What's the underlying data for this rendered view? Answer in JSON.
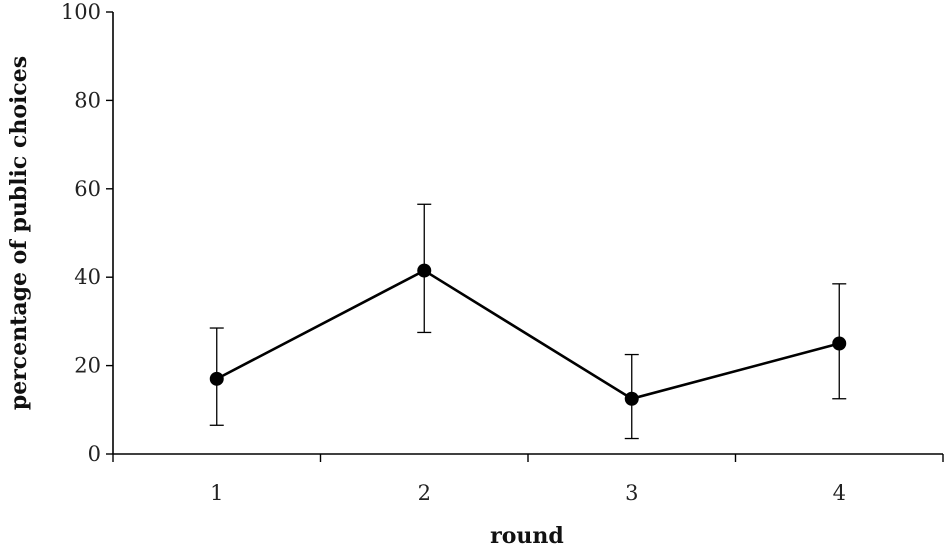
{
  "chart_data": {
    "type": "line",
    "title": "",
    "xlabel": "round",
    "ylabel": "percentage of public choices",
    "categories": [
      "1",
      "2",
      "3",
      "4"
    ],
    "series": [
      {
        "values": [
          17,
          41.5,
          12.5,
          25
        ],
        "error_low": [
          6.5,
          27.5,
          3.5,
          12.5
        ],
        "error_high": [
          28.5,
          56.5,
          22.5,
          38.5
        ]
      }
    ],
    "ylim": [
      0,
      100
    ],
    "yticks": [
      0,
      20,
      40,
      60,
      80,
      100
    ],
    "grid": false,
    "legend": "none",
    "colors": {
      "line": "#000000",
      "marker": "#000000",
      "axis": "#000000"
    }
  }
}
